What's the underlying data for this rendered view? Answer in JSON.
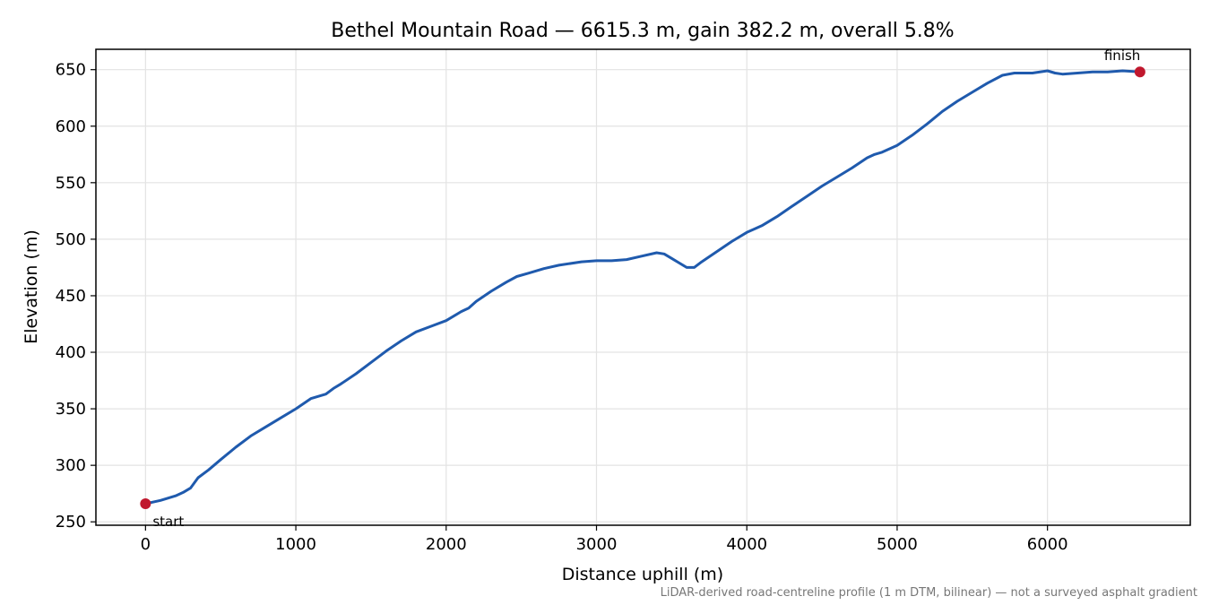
{
  "chart_data": {
    "type": "line",
    "title": "Bethel Mountain Road — 6615.3 m, gain 382.2 m, overall 5.8%",
    "xlabel": "Distance uphill (m)",
    "ylabel": "Elevation (m)",
    "xlim": [
      -330,
      6950
    ],
    "ylim": [
      247,
      668
    ],
    "xticks": [
      0,
      1000,
      2000,
      3000,
      4000,
      5000,
      6000
    ],
    "yticks": [
      250,
      300,
      350,
      400,
      450,
      500,
      550,
      600,
      650
    ],
    "grid": true,
    "series": [
      {
        "color": "#1f5aad",
        "x": [
          0,
          100,
          200,
          250,
          300,
          350,
          420,
          500,
          600,
          700,
          800,
          900,
          1000,
          1100,
          1200,
          1250,
          1300,
          1400,
          1500,
          1600,
          1700,
          1800,
          1900,
          2000,
          2100,
          2150,
          2200,
          2300,
          2400,
          2470,
          2550,
          2650,
          2750,
          2900,
          3000,
          3100,
          3200,
          3300,
          3400,
          3450,
          3500,
          3550,
          3600,
          3650,
          3700,
          3800,
          3900,
          4000,
          4100,
          4200,
          4300,
          4400,
          4500,
          4600,
          4700,
          4800,
          4850,
          4900,
          5000,
          5100,
          5200,
          5300,
          5400,
          5500,
          5600,
          5700,
          5780,
          5900,
          6000,
          6050,
          6100,
          6200,
          6300,
          6400,
          6500,
          6615.3
        ],
        "y": [
          266,
          269,
          273,
          276,
          280,
          289,
          296,
          305,
          316,
          326,
          334,
          342,
          350,
          359,
          363,
          368,
          372,
          381,
          391,
          401,
          410,
          418,
          423,
          428,
          436,
          439,
          445,
          454,
          462,
          467,
          470,
          474,
          477,
          480,
          481,
          481,
          482,
          485,
          488,
          487,
          483,
          479,
          475,
          475,
          480,
          489,
          498,
          506,
          512,
          520,
          529,
          538,
          547,
          555,
          563,
          572,
          575,
          577,
          583,
          592,
          602,
          613,
          622,
          630,
          638,
          645,
          647,
          647,
          649,
          647,
          646,
          647,
          648,
          648,
          649,
          648
        ]
      }
    ],
    "markers": [
      {
        "label": "start",
        "x": 0,
        "y": 266,
        "color": "#c0182e"
      },
      {
        "label": "finish",
        "x": 6615.3,
        "y": 648,
        "color": "#c0182e"
      }
    ],
    "footnote": "LiDAR-derived road-centreline profile (1 m DTM, bilinear) — not a surveyed asphalt gradient"
  }
}
